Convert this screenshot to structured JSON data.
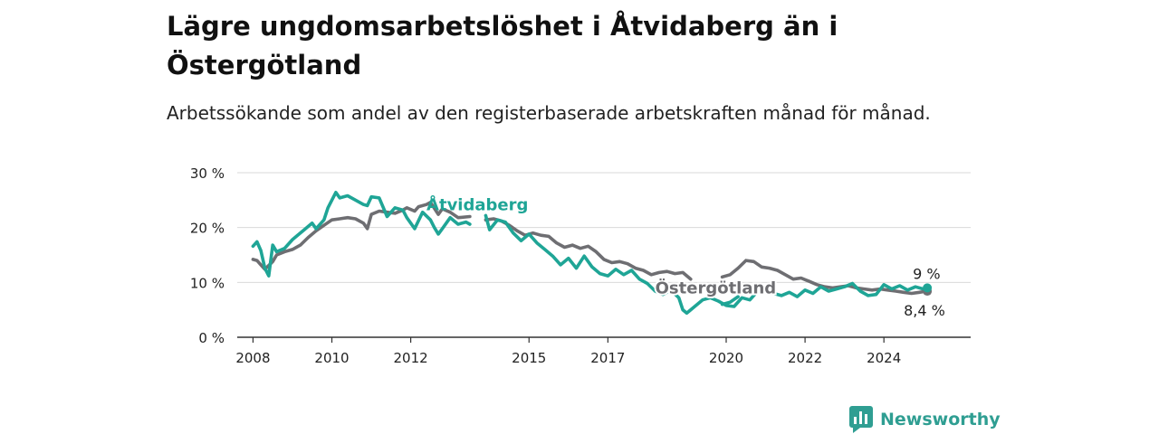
{
  "title": "Lägre ungdomsarbetslöshet i Åtvidaberg än i Östergötland",
  "subtitle": "Arbetssökande som andel av den registerbaserade arbetskraften månad för månad.",
  "brand": "Newsworthy",
  "colors": {
    "atvidaberg": "#1fa596",
    "ostergotland": "#6e6e72",
    "grid": "#d9d9d9",
    "axis": "#333333"
  },
  "icons": {
    "logo": "bar-chart-speech-bubble-icon"
  },
  "chart_data": {
    "type": "line",
    "ylim": [
      0,
      30
    ],
    "y_ticks": [
      0,
      10,
      20,
      30
    ],
    "y_tick_labels": [
      "0 %",
      "10 %",
      "20 %",
      "30 %"
    ],
    "x_range": [
      2007.6,
      2026.2
    ],
    "x_ticks": [
      2008,
      2010,
      2012,
      2015,
      2017,
      2020,
      2022,
      2024
    ],
    "x_tick_labels": [
      "2008",
      "2010",
      "2012",
      "2015",
      "2017",
      "2020",
      "2022",
      "2024"
    ],
    "grid": "horizontal",
    "series": [
      {
        "name": "Östergötland",
        "color": "#6e6e72",
        "end_label": "8,4 %",
        "end_value": 8.4,
        "segments": [
          [
            [
              2008.0,
              14.2
            ],
            [
              2008.1,
              14.0
            ],
            [
              2008.2,
              13.2
            ],
            [
              2008.3,
              12.4
            ],
            [
              2008.5,
              13.8
            ],
            [
              2008.6,
              15.0
            ],
            [
              2008.8,
              15.6
            ],
            [
              2009.0,
              16.0
            ],
            [
              2009.2,
              16.8
            ],
            [
              2009.4,
              18.2
            ],
            [
              2009.6,
              19.4
            ],
            [
              2009.8,
              20.4
            ],
            [
              2010.0,
              21.4
            ],
            [
              2010.2,
              21.6
            ],
            [
              2010.4,
              21.8
            ],
            [
              2010.6,
              21.6
            ],
            [
              2010.8,
              20.8
            ],
            [
              2010.9,
              19.8
            ],
            [
              2011.0,
              22.4
            ],
            [
              2011.2,
              23.0
            ],
            [
              2011.4,
              22.8
            ],
            [
              2011.6,
              22.6
            ],
            [
              2011.8,
              23.2
            ],
            [
              2011.9,
              23.6
            ],
            [
              2012.1,
              23.0
            ],
            [
              2012.2,
              23.8
            ],
            [
              2012.4,
              24.2
            ],
            [
              2012.5,
              24.6
            ],
            [
              2012.7,
              22.4
            ],
            [
              2012.8,
              23.4
            ],
            [
              2013.0,
              22.8
            ],
            [
              2013.2,
              21.8
            ],
            [
              2013.5,
              22.0
            ]
          ],
          [
            [
              2013.9,
              21.4
            ],
            [
              2014.1,
              21.6
            ],
            [
              2014.3,
              21.2
            ],
            [
              2014.5,
              20.4
            ],
            [
              2014.7,
              19.4
            ],
            [
              2014.9,
              18.6
            ],
            [
              2015.1,
              19.0
            ],
            [
              2015.3,
              18.6
            ],
            [
              2015.5,
              18.4
            ],
            [
              2015.7,
              17.2
            ],
            [
              2015.9,
              16.4
            ],
            [
              2016.1,
              16.8
            ],
            [
              2016.3,
              16.2
            ],
            [
              2016.5,
              16.6
            ],
            [
              2016.7,
              15.6
            ],
            [
              2016.9,
              14.2
            ],
            [
              2017.1,
              13.6
            ],
            [
              2017.3,
              13.8
            ],
            [
              2017.5,
              13.4
            ],
            [
              2017.7,
              12.6
            ],
            [
              2017.9,
              12.2
            ],
            [
              2018.1,
              11.4
            ],
            [
              2018.3,
              11.8
            ],
            [
              2018.5,
              12.0
            ],
            [
              2018.7,
              11.6
            ],
            [
              2018.9,
              11.8
            ],
            [
              2019.1,
              10.6
            ]
          ]
        ],
        "segments_2": [
          [
            [
              2019.9,
              11.0
            ],
            [
              2020.1,
              11.4
            ],
            [
              2020.3,
              12.6
            ],
            [
              2020.5,
              14.0
            ],
            [
              2020.7,
              13.8
            ],
            [
              2020.9,
              12.8
            ],
            [
              2021.1,
              12.6
            ],
            [
              2021.3,
              12.2
            ],
            [
              2021.5,
              11.4
            ],
            [
              2021.7,
              10.6
            ],
            [
              2021.9,
              10.8
            ],
            [
              2022.1,
              10.2
            ],
            [
              2022.3,
              9.6
            ],
            [
              2022.5,
              9.2
            ],
            [
              2022.7,
              9.0
            ],
            [
              2022.9,
              9.2
            ],
            [
              2023.1,
              9.4
            ],
            [
              2023.3,
              9.0
            ],
            [
              2023.5,
              8.8
            ],
            [
              2023.7,
              8.6
            ],
            [
              2023.9,
              8.8
            ],
            [
              2024.1,
              8.6
            ],
            [
              2024.3,
              8.4
            ],
            [
              2024.5,
              8.2
            ],
            [
              2024.7,
              8.0
            ],
            [
              2024.9,
              8.2
            ],
            [
              2025.1,
              8.4
            ]
          ]
        ]
      },
      {
        "name": "Åtvidaberg",
        "color": "#1fa596",
        "end_label": "9 %",
        "end_value": 9.0,
        "segments": [
          [
            [
              2008.0,
              16.6
            ],
            [
              2008.1,
              17.4
            ],
            [
              2008.2,
              15.8
            ],
            [
              2008.3,
              12.6
            ],
            [
              2008.4,
              11.2
            ],
            [
              2008.5,
              16.8
            ],
            [
              2008.6,
              15.6
            ],
            [
              2008.8,
              16.2
            ],
            [
              2009.0,
              17.8
            ],
            [
              2009.1,
              18.4
            ],
            [
              2009.3,
              19.6
            ],
            [
              2009.5,
              20.8
            ],
            [
              2009.6,
              19.8
            ],
            [
              2009.8,
              21.4
            ],
            [
              2009.9,
              23.6
            ],
            [
              2010.1,
              26.4
            ],
            [
              2010.2,
              25.4
            ],
            [
              2010.4,
              25.8
            ],
            [
              2010.6,
              25.0
            ],
            [
              2010.8,
              24.2
            ],
            [
              2010.9,
              24.0
            ],
            [
              2011.0,
              25.6
            ],
            [
              2011.2,
              25.4
            ],
            [
              2011.4,
              22.0
            ],
            [
              2011.6,
              23.6
            ],
            [
              2011.8,
              23.2
            ],
            [
              2011.9,
              21.8
            ],
            [
              2012.1,
              19.8
            ],
            [
              2012.3,
              22.8
            ],
            [
              2012.5,
              21.4
            ],
            [
              2012.6,
              20.0
            ],
            [
              2012.7,
              18.8
            ],
            [
              2012.8,
              19.8
            ],
            [
              2013.0,
              21.8
            ],
            [
              2013.2,
              20.6
            ],
            [
              2013.4,
              21.0
            ],
            [
              2013.5,
              20.6
            ]
          ],
          [
            [
              2013.9,
              22.2
            ],
            [
              2014.0,
              19.6
            ],
            [
              2014.2,
              21.4
            ],
            [
              2014.4,
              21.0
            ],
            [
              2014.6,
              19.0
            ],
            [
              2014.8,
              17.6
            ],
            [
              2015.0,
              18.8
            ],
            [
              2015.2,
              17.2
            ],
            [
              2015.4,
              16.0
            ],
            [
              2015.6,
              14.8
            ],
            [
              2015.8,
              13.2
            ],
            [
              2016.0,
              14.4
            ],
            [
              2016.2,
              12.6
            ],
            [
              2016.4,
              14.8
            ],
            [
              2016.6,
              12.8
            ],
            [
              2016.8,
              11.6
            ],
            [
              2017.0,
              11.2
            ],
            [
              2017.2,
              12.4
            ],
            [
              2017.4,
              11.4
            ],
            [
              2017.6,
              12.2
            ],
            [
              2017.8,
              10.6
            ],
            [
              2018.0,
              9.8
            ],
            [
              2018.2,
              8.4
            ],
            [
              2018.4,
              7.8
            ],
            [
              2018.6,
              8.6
            ],
            [
              2018.8,
              7.2
            ],
            [
              2018.9,
              5.0
            ],
            [
              2019.0,
              4.4
            ],
            [
              2019.2,
              5.6
            ],
            [
              2019.4,
              6.8
            ],
            [
              2019.6,
              7.2
            ],
            [
              2019.8,
              6.6
            ],
            [
              2020.0,
              5.8
            ],
            [
              2020.2,
              5.6
            ],
            [
              2020.4,
              7.2
            ],
            [
              2020.6,
              6.8
            ],
            [
              2020.8,
              8.4
            ],
            [
              2021.0,
              9.2
            ],
            [
              2021.2,
              8.0
            ],
            [
              2021.4,
              7.6
            ],
            [
              2021.6,
              8.2
            ],
            [
              2021.8,
              7.4
            ],
            [
              2022.0,
              8.6
            ],
            [
              2022.2,
              8.0
            ],
            [
              2022.4,
              9.2
            ],
            [
              2022.6,
              8.4
            ],
            [
              2022.8,
              8.8
            ],
            [
              2023.0,
              9.2
            ],
            [
              2023.2,
              9.8
            ],
            [
              2023.4,
              8.4
            ],
            [
              2023.6,
              7.6
            ],
            [
              2023.8,
              7.8
            ],
            [
              2024.0,
              9.6
            ],
            [
              2024.2,
              8.8
            ],
            [
              2024.4,
              9.4
            ],
            [
              2024.6,
              8.6
            ],
            [
              2024.8,
              9.2
            ],
            [
              2025.0,
              8.8
            ],
            [
              2025.1,
              9.0
            ]
          ]
        ],
        "segments_2": [
          [
            [
              2019.9,
              6.0
            ],
            [
              2020.1,
              6.4
            ],
            [
              2020.3,
              7.4
            ]
          ]
        ]
      }
    ]
  }
}
